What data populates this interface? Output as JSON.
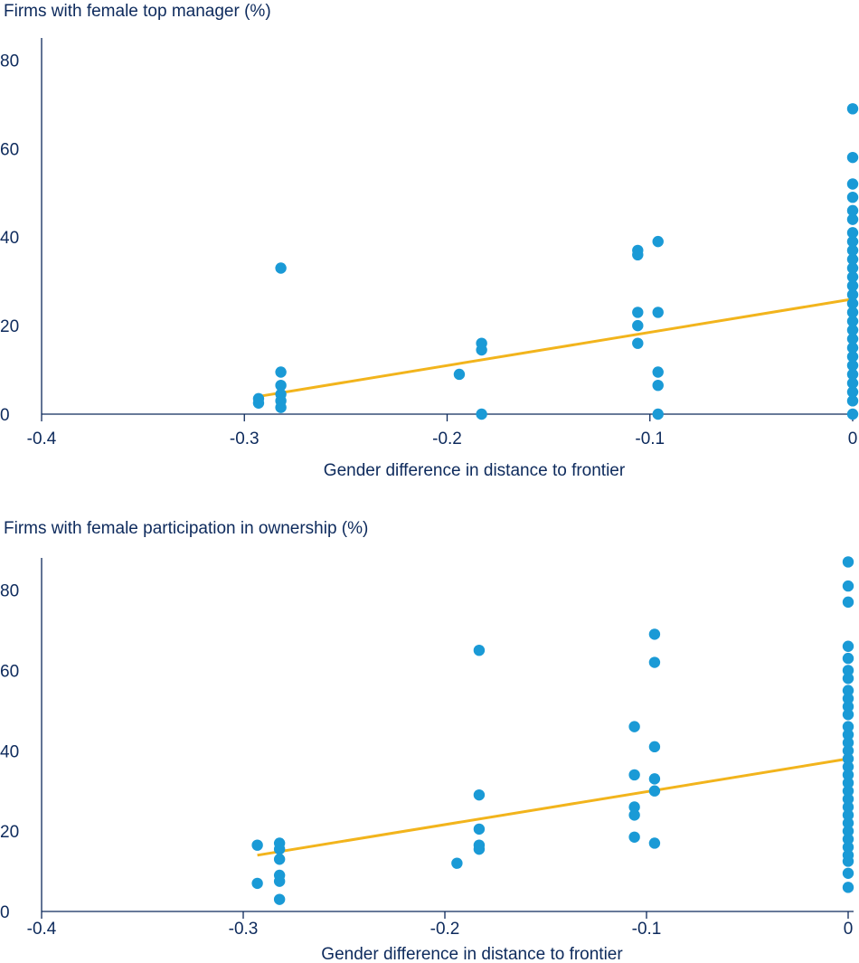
{
  "colors": {
    "point": "#1a9ad6",
    "trend": "#f2b41c",
    "axis": "#0d2a5c"
  },
  "chart_data": [
    {
      "type": "scatter",
      "title": "Firms with female top manager (%)",
      "xlabel": "Gender difference in distance to frontier",
      "ylabel": "",
      "xlim": [
        -0.4,
        0
      ],
      "ylim": [
        0,
        85
      ],
      "xticks": [
        "-0.4",
        "-0.3",
        "-0.2",
        "-0.1",
        "0"
      ],
      "yticks": [
        "0",
        "20",
        "40",
        "60",
        "80"
      ],
      "xtick_values": [
        -0.4,
        -0.3,
        -0.2,
        -0.1,
        0
      ],
      "ytick_values": [
        0,
        20,
        40,
        60,
        80
      ],
      "grid": false,
      "trendline": {
        "x": [
          -0.293,
          0
        ],
        "y": [
          4,
          26
        ]
      },
      "points": [
        [
          -0.293,
          2.5
        ],
        [
          -0.293,
          3.5
        ],
        [
          -0.282,
          1.5
        ],
        [
          -0.282,
          3
        ],
        [
          -0.282,
          4.5
        ],
        [
          -0.282,
          6.5
        ],
        [
          -0.282,
          9.5
        ],
        [
          -0.282,
          33
        ],
        [
          -0.194,
          9
        ],
        [
          -0.183,
          0
        ],
        [
          -0.183,
          14.5
        ],
        [
          -0.183,
          16
        ],
        [
          -0.106,
          16
        ],
        [
          -0.106,
          20
        ],
        [
          -0.106,
          23
        ],
        [
          -0.106,
          36
        ],
        [
          -0.106,
          37
        ],
        [
          -0.096,
          0
        ],
        [
          -0.096,
          6.5
        ],
        [
          -0.096,
          9.5
        ],
        [
          -0.096,
          23
        ],
        [
          -0.096,
          39
        ],
        [
          0,
          0
        ],
        [
          0,
          3
        ],
        [
          0,
          5
        ],
        [
          0,
          7
        ],
        [
          0,
          9
        ],
        [
          0,
          11
        ],
        [
          0,
          13
        ],
        [
          0,
          15
        ],
        [
          0,
          17
        ],
        [
          0,
          19
        ],
        [
          0,
          21
        ],
        [
          0,
          23
        ],
        [
          0,
          25
        ],
        [
          0,
          27
        ],
        [
          0,
          29
        ],
        [
          0,
          31
        ],
        [
          0,
          33
        ],
        [
          0,
          35
        ],
        [
          0,
          37
        ],
        [
          0,
          39
        ],
        [
          0,
          41
        ],
        [
          0,
          44
        ],
        [
          0,
          46
        ],
        [
          0,
          49
        ],
        [
          0,
          52
        ],
        [
          0,
          58
        ],
        [
          0,
          69
        ]
      ]
    },
    {
      "type": "scatter",
      "title": "Firms with female participation in ownership (%)",
      "xlabel": "Gender difference in distance to frontier",
      "ylabel": "",
      "xlim": [
        -0.4,
        0
      ],
      "ylim": [
        0,
        88
      ],
      "xticks": [
        "-0.4",
        "-0.3",
        "-0.2",
        "-0.1",
        "0"
      ],
      "yticks": [
        "0",
        "20",
        "40",
        "60",
        "80"
      ],
      "xtick_values": [
        -0.4,
        -0.3,
        -0.2,
        -0.1,
        0
      ],
      "ytick_values": [
        0,
        20,
        40,
        60,
        80
      ],
      "grid": false,
      "trendline": {
        "x": [
          -0.293,
          0
        ],
        "y": [
          14,
          38
        ]
      },
      "points": [
        [
          -0.293,
          7
        ],
        [
          -0.293,
          16.5
        ],
        [
          -0.282,
          3
        ],
        [
          -0.282,
          7.5
        ],
        [
          -0.282,
          9
        ],
        [
          -0.282,
          13
        ],
        [
          -0.282,
          15.5
        ],
        [
          -0.282,
          17
        ],
        [
          -0.194,
          12
        ],
        [
          -0.183,
          15.5
        ],
        [
          -0.183,
          16.5
        ],
        [
          -0.183,
          20.5
        ],
        [
          -0.183,
          29
        ],
        [
          -0.183,
          65
        ],
        [
          -0.106,
          18.5
        ],
        [
          -0.106,
          24
        ],
        [
          -0.106,
          26
        ],
        [
          -0.106,
          34
        ],
        [
          -0.106,
          46
        ],
        [
          -0.096,
          17
        ],
        [
          -0.096,
          30
        ],
        [
          -0.096,
          33
        ],
        [
          -0.096,
          41
        ],
        [
          -0.096,
          62
        ],
        [
          -0.096,
          69
        ],
        [
          0,
          6
        ],
        [
          0,
          9.5
        ],
        [
          0,
          12.5
        ],
        [
          0,
          14
        ],
        [
          0,
          16
        ],
        [
          0,
          18
        ],
        [
          0,
          20
        ],
        [
          0,
          22
        ],
        [
          0,
          24
        ],
        [
          0,
          26
        ],
        [
          0,
          28
        ],
        [
          0,
          30
        ],
        [
          0,
          32
        ],
        [
          0,
          34
        ],
        [
          0,
          36
        ],
        [
          0,
          38
        ],
        [
          0,
          40
        ],
        [
          0,
          42
        ],
        [
          0,
          44
        ],
        [
          0,
          46
        ],
        [
          0,
          49
        ],
        [
          0,
          51
        ],
        [
          0,
          53
        ],
        [
          0,
          55
        ],
        [
          0,
          58
        ],
        [
          0,
          60
        ],
        [
          0,
          63
        ],
        [
          0,
          66
        ],
        [
          0,
          77
        ],
        [
          0,
          81
        ],
        [
          0,
          87
        ]
      ]
    }
  ]
}
